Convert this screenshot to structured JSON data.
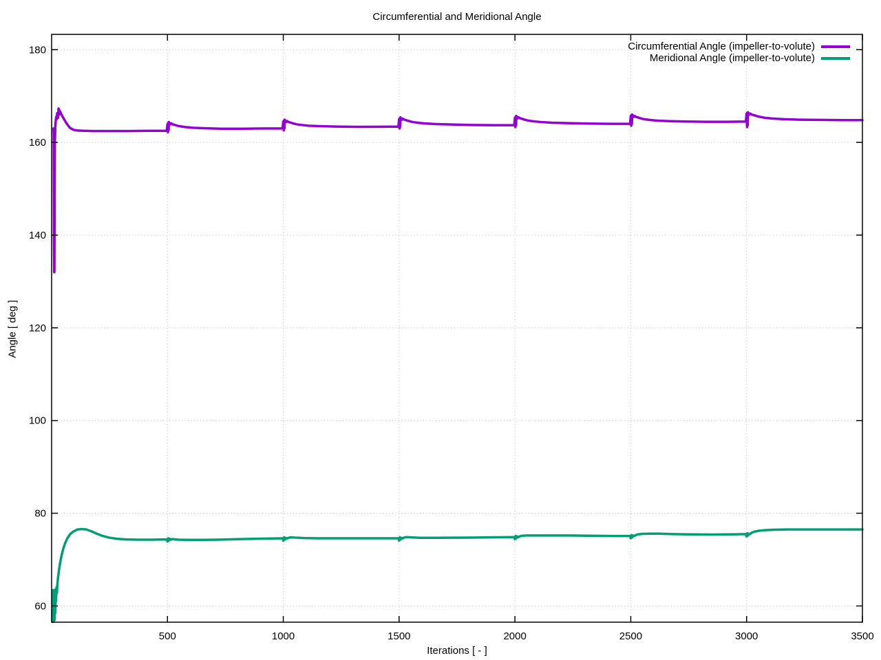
{
  "page": {
    "background": "#ffffff"
  },
  "chart_data": {
    "type": "line",
    "title": "Circumferential and Meridional Angle",
    "xlabel": "Iterations [ - ]",
    "ylabel": "Angle [ deg ]",
    "xlim": [
      0,
      3500
    ],
    "ylim": [
      56.5,
      183.3
    ],
    "xticks": [
      500,
      1000,
      1500,
      2000,
      2500,
      3000,
      3500
    ],
    "yticks": [
      60,
      80,
      100,
      120,
      140,
      160,
      180
    ],
    "grid": true,
    "grid_style": "dotted",
    "grid_color": "#bdbdbd",
    "axis_color": "#000000",
    "legend_position": "top-right-inside",
    "series": [
      {
        "name": "Circumferential Angle (impeller-to-volute)",
        "color": "#9400d3",
        "points": [
          [
            8,
            163.0
          ],
          [
            9,
            162.0
          ],
          [
            10,
            139.0
          ],
          [
            11,
            132.0
          ],
          [
            12,
            132.0
          ],
          [
            13,
            148.0
          ],
          [
            14,
            160.0
          ],
          [
            16,
            163.5
          ],
          [
            18,
            164.8
          ],
          [
            20,
            165.5
          ],
          [
            22,
            165.0
          ],
          [
            24,
            166.3
          ],
          [
            26,
            165.6
          ],
          [
            28,
            165.3
          ],
          [
            30,
            167.3
          ],
          [
            32,
            166.0
          ],
          [
            34,
            166.9
          ],
          [
            36,
            166.3
          ],
          [
            38,
            166.6
          ],
          [
            40,
            166.2
          ],
          [
            44,
            165.9
          ],
          [
            48,
            165.5
          ],
          [
            55,
            164.9
          ],
          [
            62,
            164.3
          ],
          [
            70,
            163.7
          ],
          [
            80,
            163.1
          ],
          [
            95,
            162.7
          ],
          [
            115,
            162.55
          ],
          [
            140,
            162.5
          ],
          [
            180,
            162.45
          ],
          [
            250,
            162.45
          ],
          [
            330,
            162.45
          ],
          [
            420,
            162.5
          ],
          [
            497,
            162.5
          ],
          [
            500,
            163.9
          ],
          [
            502,
            162.2
          ],
          [
            503,
            164.2
          ],
          [
            505,
            162.6
          ],
          [
            506,
            164.4
          ],
          [
            508,
            163.8
          ],
          [
            510,
            164.2
          ],
          [
            513,
            163.9
          ],
          [
            517,
            164.1
          ],
          [
            522,
            163.9
          ],
          [
            530,
            163.8
          ],
          [
            542,
            163.6
          ],
          [
            558,
            163.45
          ],
          [
            580,
            163.3
          ],
          [
            610,
            163.15
          ],
          [
            660,
            163.05
          ],
          [
            730,
            162.95
          ],
          [
            820,
            162.95
          ],
          [
            920,
            163.0
          ],
          [
            997,
            163.0
          ],
          [
            1000,
            164.5
          ],
          [
            1002,
            162.6
          ],
          [
            1003,
            164.7
          ],
          [
            1005,
            163.0
          ],
          [
            1006,
            164.9
          ],
          [
            1008,
            164.3
          ],
          [
            1010,
            164.7
          ],
          [
            1013,
            164.4
          ],
          [
            1017,
            164.6
          ],
          [
            1022,
            164.4
          ],
          [
            1030,
            164.3
          ],
          [
            1042,
            164.1
          ],
          [
            1058,
            163.9
          ],
          [
            1080,
            163.75
          ],
          [
            1110,
            163.6
          ],
          [
            1160,
            163.5
          ],
          [
            1230,
            163.4
          ],
          [
            1320,
            163.35
          ],
          [
            1420,
            163.38
          ],
          [
            1497,
            163.4
          ],
          [
            1500,
            165.0
          ],
          [
            1502,
            163.0
          ],
          [
            1503,
            165.2
          ],
          [
            1505,
            163.4
          ],
          [
            1506,
            165.4
          ],
          [
            1508,
            164.8
          ],
          [
            1510,
            165.2
          ],
          [
            1513,
            164.9
          ],
          [
            1517,
            165.1
          ],
          [
            1522,
            164.9
          ],
          [
            1530,
            164.8
          ],
          [
            1542,
            164.6
          ],
          [
            1558,
            164.4
          ],
          [
            1580,
            164.25
          ],
          [
            1610,
            164.1
          ],
          [
            1660,
            163.95
          ],
          [
            1730,
            163.85
          ],
          [
            1820,
            163.75
          ],
          [
            1920,
            163.7
          ],
          [
            1997,
            163.7
          ],
          [
            2000,
            165.3
          ],
          [
            2002,
            163.3
          ],
          [
            2003,
            165.5
          ],
          [
            2005,
            163.7
          ],
          [
            2006,
            165.7
          ],
          [
            2008,
            165.1
          ],
          [
            2010,
            165.5
          ],
          [
            2013,
            165.2
          ],
          [
            2017,
            165.4
          ],
          [
            2022,
            165.2
          ],
          [
            2030,
            165.1
          ],
          [
            2042,
            164.9
          ],
          [
            2058,
            164.7
          ],
          [
            2080,
            164.55
          ],
          [
            2110,
            164.4
          ],
          [
            2160,
            164.25
          ],
          [
            2230,
            164.15
          ],
          [
            2320,
            164.05
          ],
          [
            2420,
            164.0
          ],
          [
            2497,
            164.0
          ],
          [
            2500,
            165.7
          ],
          [
            2502,
            163.6
          ],
          [
            2503,
            165.9
          ],
          [
            2505,
            164.0
          ],
          [
            2506,
            166.0
          ],
          [
            2508,
            165.4
          ],
          [
            2510,
            165.8
          ],
          [
            2513,
            165.5
          ],
          [
            2517,
            165.7
          ],
          [
            2522,
            165.5
          ],
          [
            2530,
            165.4
          ],
          [
            2542,
            165.2
          ],
          [
            2558,
            165.0
          ],
          [
            2580,
            164.85
          ],
          [
            2610,
            164.7
          ],
          [
            2660,
            164.6
          ],
          [
            2730,
            164.5
          ],
          [
            2820,
            164.45
          ],
          [
            2920,
            164.45
          ],
          [
            2997,
            164.5
          ],
          [
            3000,
            166.2
          ],
          [
            3002,
            163.3
          ],
          [
            3003,
            166.4
          ],
          [
            3005,
            163.7
          ],
          [
            3006,
            166.5
          ],
          [
            3008,
            165.9
          ],
          [
            3010,
            166.3
          ],
          [
            3013,
            166.0
          ],
          [
            3017,
            166.2
          ],
          [
            3022,
            166.0
          ],
          [
            3030,
            165.9
          ],
          [
            3042,
            165.7
          ],
          [
            3058,
            165.5
          ],
          [
            3080,
            165.3
          ],
          [
            3110,
            165.15
          ],
          [
            3160,
            165.0
          ],
          [
            3230,
            164.9
          ],
          [
            3320,
            164.85
          ],
          [
            3420,
            164.8
          ],
          [
            3500,
            164.8
          ]
        ]
      },
      {
        "name": "Meridional Angle (impeller-to-volute)",
        "color": "#009e73",
        "points": [
          [
            3,
            56.6
          ],
          [
            4,
            63.4
          ],
          [
            5,
            56.7
          ],
          [
            6,
            63.3
          ],
          [
            7,
            56.6
          ],
          [
            9,
            63.4
          ],
          [
            10,
            56.8
          ],
          [
            12,
            63.4
          ],
          [
            13,
            57.0
          ],
          [
            15,
            63.5
          ],
          [
            16,
            58.5
          ],
          [
            18,
            63.3
          ],
          [
            19,
            61.0
          ],
          [
            21,
            64.0
          ],
          [
            23,
            62.8
          ],
          [
            25,
            64.8
          ],
          [
            28,
            66.2
          ],
          [
            32,
            67.8
          ],
          [
            37,
            69.4
          ],
          [
            43,
            70.9
          ],
          [
            50,
            72.3
          ],
          [
            58,
            73.5
          ],
          [
            68,
            74.6
          ],
          [
            80,
            75.5
          ],
          [
            95,
            76.1
          ],
          [
            112,
            76.5
          ],
          [
            130,
            76.6
          ],
          [
            150,
            76.5
          ],
          [
            172,
            76.1
          ],
          [
            195,
            75.6
          ],
          [
            220,
            75.1
          ],
          [
            248,
            74.75
          ],
          [
            280,
            74.5
          ],
          [
            320,
            74.35
          ],
          [
            370,
            74.3
          ],
          [
            430,
            74.3
          ],
          [
            497,
            74.35
          ],
          [
            500,
            73.9
          ],
          [
            503,
            74.6
          ],
          [
            506,
            74.1
          ],
          [
            510,
            74.5
          ],
          [
            515,
            74.3
          ],
          [
            522,
            74.45
          ],
          [
            532,
            74.35
          ],
          [
            550,
            74.3
          ],
          [
            590,
            74.25
          ],
          [
            650,
            74.25
          ],
          [
            720,
            74.3
          ],
          [
            800,
            74.4
          ],
          [
            890,
            74.5
          ],
          [
            997,
            74.6
          ],
          [
            1000,
            74.1
          ],
          [
            1003,
            74.8
          ],
          [
            1006,
            74.3
          ],
          [
            1010,
            74.7
          ],
          [
            1015,
            74.5
          ],
          [
            1022,
            74.7
          ],
          [
            1032,
            74.8
          ],
          [
            1050,
            74.75
          ],
          [
            1090,
            74.65
          ],
          [
            1150,
            74.6
          ],
          [
            1230,
            74.6
          ],
          [
            1320,
            74.6
          ],
          [
            1420,
            74.6
          ],
          [
            1497,
            74.6
          ],
          [
            1500,
            74.1
          ],
          [
            1503,
            74.8
          ],
          [
            1506,
            74.3
          ],
          [
            1510,
            74.7
          ],
          [
            1515,
            74.55
          ],
          [
            1522,
            74.75
          ],
          [
            1532,
            74.85
          ],
          [
            1550,
            74.8
          ],
          [
            1590,
            74.7
          ],
          [
            1650,
            74.7
          ],
          [
            1720,
            74.72
          ],
          [
            1800,
            74.75
          ],
          [
            1890,
            74.8
          ],
          [
            1997,
            74.85
          ],
          [
            2000,
            74.4
          ],
          [
            2003,
            75.1
          ],
          [
            2006,
            74.6
          ],
          [
            2010,
            75.0
          ],
          [
            2015,
            74.85
          ],
          [
            2022,
            75.05
          ],
          [
            2032,
            75.15
          ],
          [
            2050,
            75.2
          ],
          [
            2090,
            75.2
          ],
          [
            2150,
            75.2
          ],
          [
            2230,
            75.2
          ],
          [
            2320,
            75.15
          ],
          [
            2420,
            75.1
          ],
          [
            2497,
            75.1
          ],
          [
            2500,
            74.6
          ],
          [
            2503,
            75.3
          ],
          [
            2506,
            74.8
          ],
          [
            2510,
            75.2
          ],
          [
            2515,
            75.1
          ],
          [
            2522,
            75.3
          ],
          [
            2532,
            75.45
          ],
          [
            2550,
            75.55
          ],
          [
            2580,
            75.6
          ],
          [
            2620,
            75.6
          ],
          [
            2680,
            75.5
          ],
          [
            2750,
            75.45
          ],
          [
            2850,
            75.4
          ],
          [
            2940,
            75.45
          ],
          [
            2997,
            75.5
          ],
          [
            3000,
            75.0
          ],
          [
            3003,
            75.7
          ],
          [
            3006,
            75.2
          ],
          [
            3010,
            75.6
          ],
          [
            3015,
            75.5
          ],
          [
            3022,
            75.8
          ],
          [
            3032,
            76.0
          ],
          [
            3050,
            76.2
          ],
          [
            3080,
            76.35
          ],
          [
            3120,
            76.45
          ],
          [
            3180,
            76.5
          ],
          [
            3260,
            76.5
          ],
          [
            3360,
            76.5
          ],
          [
            3500,
            76.5
          ]
        ]
      }
    ]
  }
}
